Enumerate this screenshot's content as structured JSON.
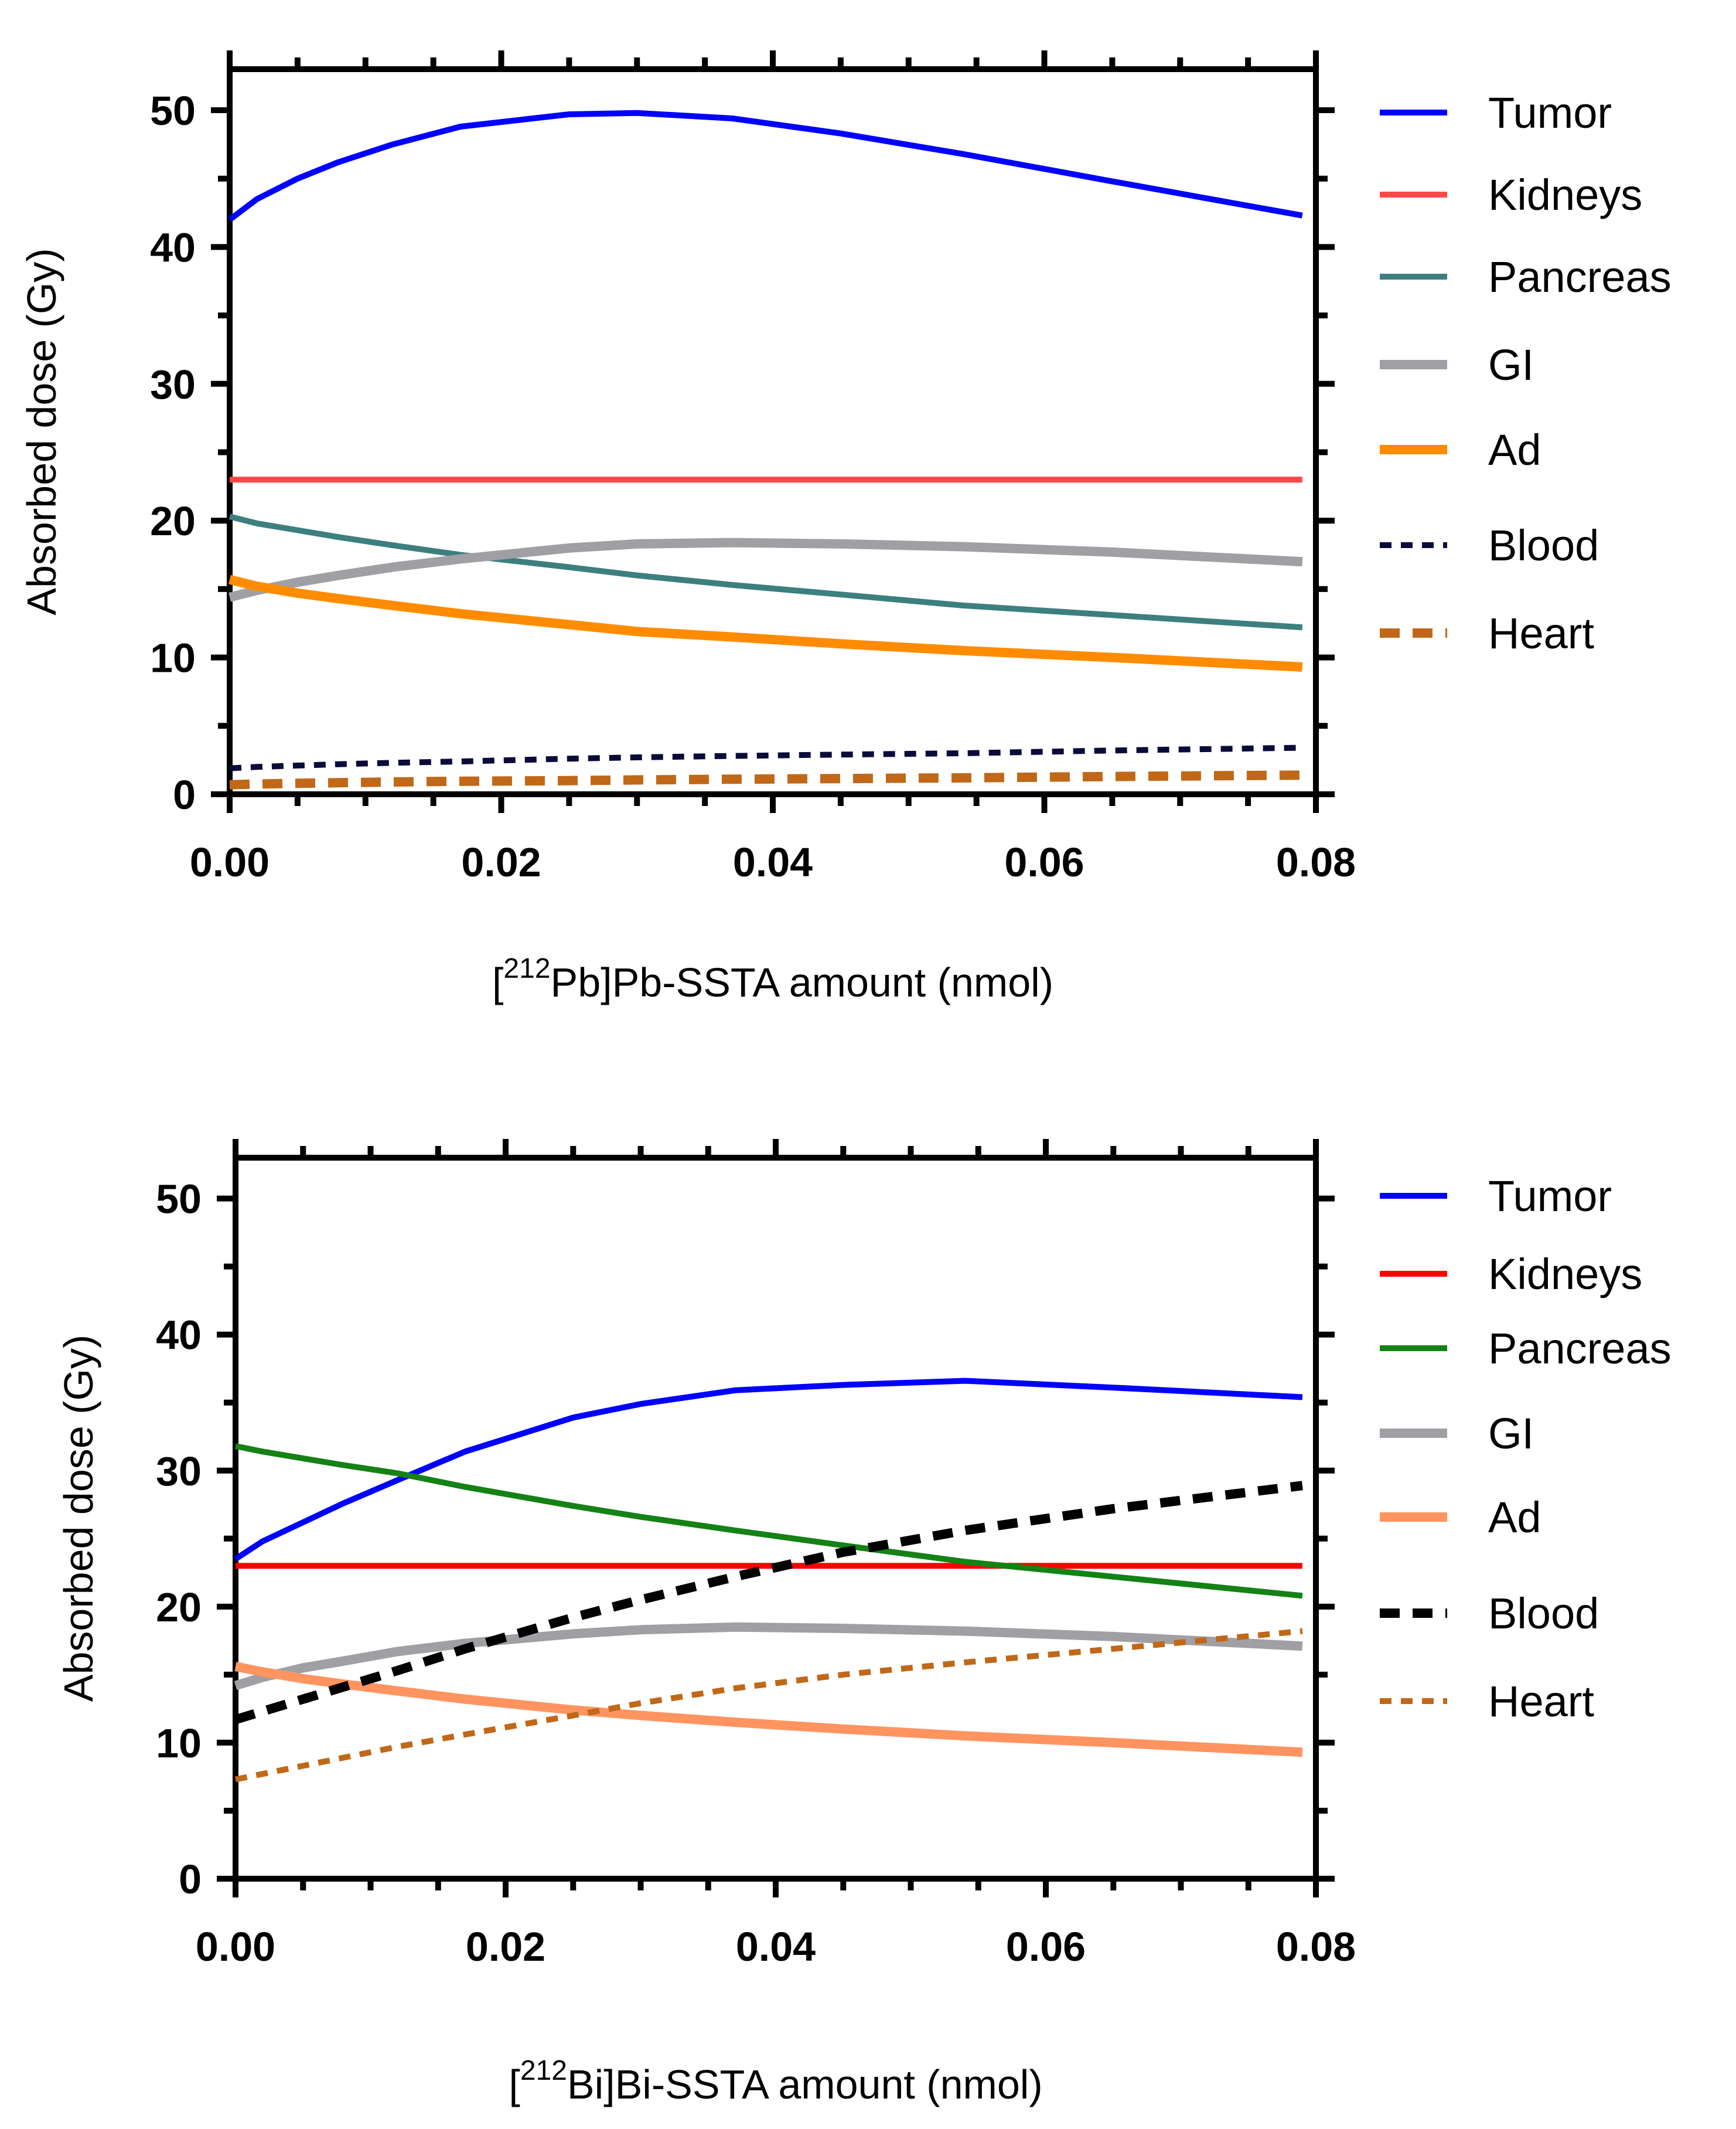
{
  "chart_data": [
    {
      "type": "line",
      "title": "",
      "xlabel": "[212Pb]Pb-SSTA amount (nmol)",
      "xlabel_parts": {
        "prefix": "[",
        "sup": "212",
        "suffix": "Pb]Pb-SSTA amount (nmol)"
      },
      "ylabel": "Absorbed dose (Gy)",
      "xlim": [
        0,
        0.08
      ],
      "ylim": [
        0,
        53
      ],
      "xticks": [
        0,
        0.02,
        0.04,
        0.06,
        0.08
      ],
      "xtick_labels": [
        "0.00",
        "0.02",
        "0.04",
        "0.06",
        "0.08"
      ],
      "yticks": [
        0,
        10,
        20,
        30,
        40,
        50
      ],
      "ytick_labels": [
        "0",
        "10",
        "20",
        "30",
        "40",
        "50"
      ],
      "grid": false,
      "legend_position": "right",
      "x": [
        0,
        0.002,
        0.005,
        0.008,
        0.012,
        0.017,
        0.025,
        0.03,
        0.037,
        0.045,
        0.054,
        0.065,
        0.079
      ],
      "series": [
        {
          "name": "Tumor",
          "color": "#0000ff",
          "style": "solid",
          "width": "thin",
          "values": [
            42.0,
            43.5,
            45.0,
            46.2,
            47.5,
            48.8,
            49.7,
            49.8,
            49.4,
            48.3,
            46.8,
            44.8,
            42.3
          ]
        },
        {
          "name": "Kidneys",
          "color": "#ff4848",
          "style": "solid",
          "width": "thin",
          "values": [
            23,
            23,
            23,
            23,
            23,
            23,
            23,
            23,
            23,
            23,
            23,
            23,
            23
          ]
        },
        {
          "name": "Pancreas",
          "color": "#3d7f7f",
          "style": "solid",
          "width": "thin",
          "values": [
            20.3,
            19.8,
            19.3,
            18.8,
            18.2,
            17.5,
            16.6,
            16.0,
            15.3,
            14.6,
            13.8,
            13.1,
            12.2
          ]
        },
        {
          "name": "GI",
          "color": "#a0a0a4",
          "style": "solid",
          "width": "thick",
          "values": [
            14.4,
            14.9,
            15.5,
            16.0,
            16.6,
            17.2,
            18.0,
            18.3,
            18.4,
            18.3,
            18.1,
            17.7,
            17.0
          ]
        },
        {
          "name": "Ad",
          "color": "#ff8c00",
          "style": "solid",
          "width": "thick",
          "values": [
            15.7,
            15.2,
            14.7,
            14.3,
            13.8,
            13.2,
            12.4,
            11.9,
            11.5,
            11.0,
            10.5,
            10.0,
            9.3
          ]
        },
        {
          "name": "Blood",
          "color": "#0b0b3b",
          "style": "dashed",
          "width": "thin",
          "values": [
            1.9,
            2.0,
            2.1,
            2.2,
            2.3,
            2.4,
            2.6,
            2.7,
            2.8,
            2.9,
            3.0,
            3.2,
            3.4
          ]
        },
        {
          "name": "Heart",
          "color": "#c06818",
          "style": "dashed",
          "width": "thick",
          "values": [
            0.7,
            0.75,
            0.8,
            0.85,
            0.9,
            0.95,
            1.0,
            1.05,
            1.1,
            1.15,
            1.2,
            1.3,
            1.4
          ]
        }
      ]
    },
    {
      "type": "line",
      "title": "",
      "xlabel": "[212Bi]Bi-SSTA amount (nmol)",
      "xlabel_parts": {
        "prefix": "[",
        "sup": "212",
        "suffix": "Bi]Bi-SSTA amount (nmol)"
      },
      "ylabel": "Absorbed dose (Gy)",
      "xlim": [
        0,
        0.08
      ],
      "ylim": [
        0,
        53
      ],
      "xticks": [
        0,
        0.02,
        0.04,
        0.06,
        0.08
      ],
      "xtick_labels": [
        "0.00",
        "0.02",
        "0.04",
        "0.06",
        "0.08"
      ],
      "yticks": [
        0,
        10,
        20,
        30,
        40,
        50
      ],
      "ytick_labels": [
        "0",
        "10",
        "20",
        "30",
        "40",
        "50"
      ],
      "grid": false,
      "legend_position": "right",
      "x": [
        0,
        0.002,
        0.005,
        0.008,
        0.012,
        0.017,
        0.025,
        0.03,
        0.037,
        0.045,
        0.054,
        0.065,
        0.079
      ],
      "series": [
        {
          "name": "Tumor",
          "color": "#0000ff",
          "style": "solid",
          "width": "thin",
          "values": [
            23.5,
            24.8,
            26.2,
            27.6,
            29.3,
            31.4,
            33.9,
            34.9,
            35.9,
            36.3,
            36.6,
            36.1,
            35.4
          ]
        },
        {
          "name": "Kidneys",
          "color": "#ff0000",
          "style": "solid",
          "width": "thin",
          "values": [
            23,
            23,
            23,
            23,
            23,
            23,
            23,
            23,
            23,
            23,
            23,
            23,
            23
          ]
        },
        {
          "name": "Pancreas",
          "color": "#148214",
          "style": "solid",
          "width": "thin",
          "values": [
            31.8,
            31.4,
            30.9,
            30.4,
            29.8,
            28.8,
            27.4,
            26.6,
            25.6,
            24.5,
            23.3,
            22.2,
            20.8
          ]
        },
        {
          "name": "GI",
          "color": "#a0a0a4",
          "style": "solid",
          "width": "thick",
          "values": [
            14.2,
            14.8,
            15.5,
            16.0,
            16.7,
            17.3,
            18.0,
            18.3,
            18.5,
            18.4,
            18.2,
            17.8,
            17.1
          ]
        },
        {
          "name": "Ad",
          "color": "#ff9460",
          "style": "solid",
          "width": "thick",
          "values": [
            15.6,
            15.2,
            14.7,
            14.3,
            13.8,
            13.2,
            12.4,
            12.0,
            11.5,
            11.0,
            10.5,
            10.0,
            9.3
          ]
        },
        {
          "name": "Blood",
          "color": "#000000",
          "style": "dashed",
          "width": "thick",
          "values": [
            11.7,
            12.3,
            13.2,
            14.1,
            15.3,
            16.9,
            19.2,
            20.5,
            22.2,
            24.0,
            25.6,
            27.2,
            28.9
          ]
        },
        {
          "name": "Heart",
          "color": "#c06818",
          "style": "dashed",
          "width": "thin",
          "values": [
            7.3,
            7.7,
            8.3,
            8.9,
            9.7,
            10.6,
            12.0,
            12.9,
            14.0,
            15.0,
            15.9,
            16.9,
            18.2
          ]
        }
      ]
    }
  ]
}
